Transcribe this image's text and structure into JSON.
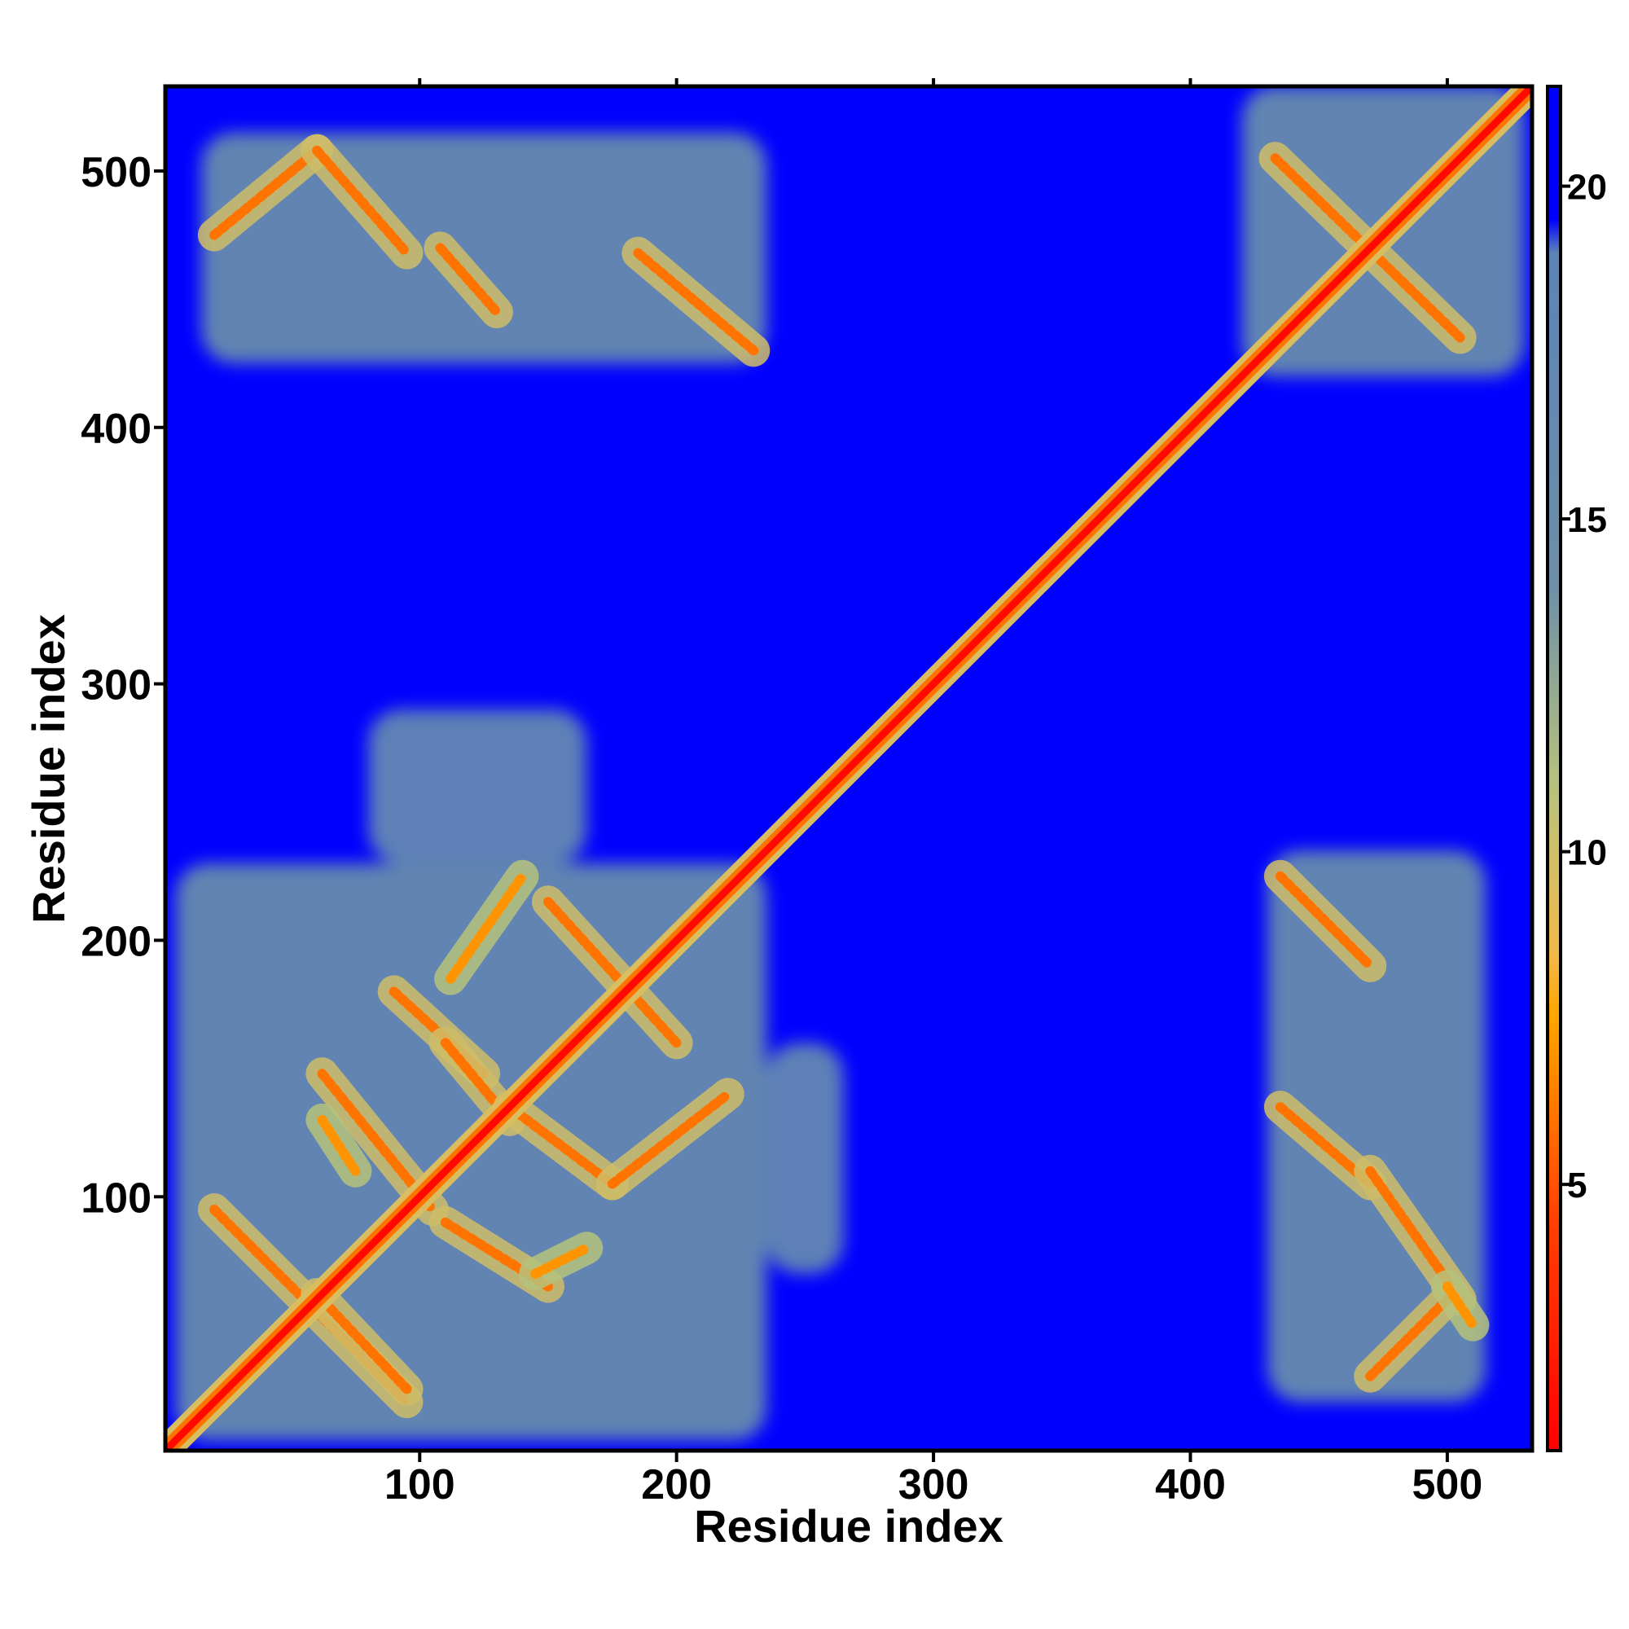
{
  "chart_data": {
    "type": "heatmap",
    "title": "",
    "xlabel": "Residue index",
    "ylabel": "Residue index",
    "xlim": [
      1,
      533
    ],
    "ylim": [
      1,
      533
    ],
    "x_ticks": [
      100,
      200,
      300,
      400,
      500
    ],
    "y_ticks": [
      100,
      200,
      300,
      400,
      500
    ],
    "x_tick_labels": [
      "100",
      "200",
      "300",
      "400",
      "500"
    ],
    "y_tick_labels": [
      "100",
      "200",
      "300",
      "400",
      "500"
    ],
    "colorbar": {
      "range": [
        1,
        21.5
      ],
      "ticks": [
        5,
        10,
        15,
        20
      ],
      "tick_labels": [
        "5",
        "10",
        "15",
        "20"
      ],
      "stops": [
        {
          "value": 1,
          "color": "#ff0000"
        },
        {
          "value": 4.5,
          "color": "#ff4000"
        },
        {
          "value": 7.5,
          "color": "#ffa500"
        },
        {
          "value": 8.5,
          "color": "#f2b94c"
        },
        {
          "value": 11,
          "color": "#b7c27c"
        },
        {
          "value": 14,
          "color": "#6d8fa8"
        },
        {
          "value": 19,
          "color": "#5b84b8"
        },
        {
          "value": 19.5,
          "color": "#0000ff"
        },
        {
          "value": 21.5,
          "color": "#0000ff"
        }
      ]
    },
    "background_value": 21,
    "diagonal_band": {
      "from": 1,
      "to": 533,
      "value": 1.5
    },
    "contact_segments": [
      {
        "x": [
          20,
          95
        ],
        "y": [
          95,
          20
        ],
        "value": 6
      },
      {
        "x": [
          60,
          95
        ],
        "y": [
          62,
          25
        ],
        "value": 6
      },
      {
        "x": [
          62,
          105
        ],
        "y": [
          148,
          95
        ],
        "value": 6
      },
      {
        "x": [
          90,
          125
        ],
        "y": [
          180,
          148
        ],
        "value": 6
      },
      {
        "x": [
          110,
          135
        ],
        "y": [
          160,
          130
        ],
        "value": 6
      },
      {
        "x": [
          112,
          140
        ],
        "y": [
          185,
          225
        ],
        "value": 7
      },
      {
        "x": [
          150,
          200
        ],
        "y": [
          215,
          160
        ],
        "value": 6
      },
      {
        "x": [
          135,
          175
        ],
        "y": [
          135,
          105
        ],
        "value": 6
      },
      {
        "x": [
          175,
          220
        ],
        "y": [
          105,
          140
        ],
        "value": 6
      },
      {
        "x": [
          110,
          150
        ],
        "y": [
          90,
          65
        ],
        "value": 6
      },
      {
        "x": [
          145,
          165
        ],
        "y": [
          70,
          80
        ],
        "value": 7
      },
      {
        "x": [
          62,
          75
        ],
        "y": [
          130,
          110
        ],
        "value": 7
      },
      {
        "x": [
          435,
          470
        ],
        "y": [
          225,
          190
        ],
        "value": 6
      },
      {
        "x": [
          435,
          470
        ],
        "y": [
          135,
          105
        ],
        "value": 6
      },
      {
        "x": [
          470,
          505
        ],
        "y": [
          110,
          60
        ],
        "value": 6
      },
      {
        "x": [
          470,
          500
        ],
        "y": [
          30,
          60
        ],
        "value": 6
      },
      {
        "x": [
          500,
          510
        ],
        "y": [
          65,
          50
        ],
        "value": 7
      },
      {
        "x": [
          20,
          60
        ],
        "y": [
          475,
          508
        ],
        "value": 6
      },
      {
        "x": [
          60,
          95
        ],
        "y": [
          508,
          468
        ],
        "value": 6
      },
      {
        "x": [
          108,
          130
        ],
        "y": [
          470,
          445
        ],
        "value": 6
      },
      {
        "x": [
          185,
          230
        ],
        "y": [
          468,
          430
        ],
        "value": 6
      },
      {
        "x": [
          433,
          505
        ],
        "y": [
          505,
          435
        ],
        "value": 6
      }
    ],
    "contact_regions": [
      {
        "x": [
          5,
          235
        ],
        "y": [
          5,
          230
        ],
        "value": 16
      },
      {
        "x": [
          80,
          165
        ],
        "y": [
          230,
          290
        ],
        "value": 17
      },
      {
        "x": [
          430,
          515
        ],
        "y": [
          20,
          235
        ],
        "value": 16
      },
      {
        "x": [
          15,
          235
        ],
        "y": [
          425,
          515
        ],
        "value": 16
      },
      {
        "x": [
          420,
          530
        ],
        "y": [
          420,
          533
        ],
        "value": 16
      },
      {
        "x": [
          235,
          265
        ],
        "y": [
          70,
          160
        ],
        "value": 17
      }
    ]
  }
}
